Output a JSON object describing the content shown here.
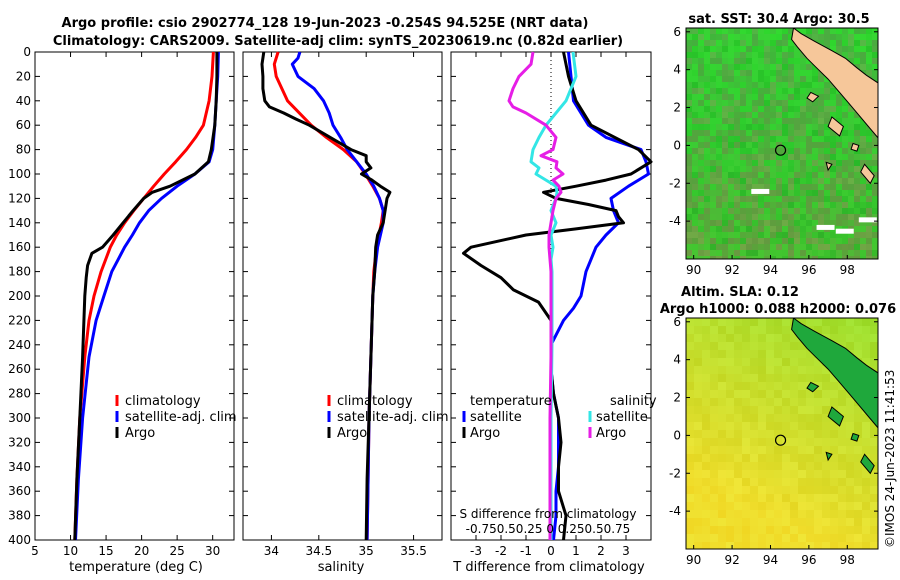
{
  "figure": {
    "title_line1": "Argo profile: csio 2902774_128 19-Jun-2023 -0.254S 94.525E (NRT data)",
    "title_line2": "Climatology: CARS2009. Satellite-adj clim: synTS_20230619.nc (0.82d earlier)",
    "sst_title": "sat. SST: 30.4 Argo: 30.5",
    "sla_title1": "Altim. SLA: 0.12",
    "sla_title2": "Argo h1000: 0.088 h2000: 0.076",
    "timestamp": "©IMOS 24-Jun-2023 11:41:53"
  },
  "colors": {
    "climatology": "#ff0000",
    "satellite": "#0000ff",
    "argo": "#000000",
    "salinity_satellite": "#33e6e6",
    "salinity_argo": "#e61ee6",
    "land": "#f6c79a"
  },
  "chart_data": [
    {
      "type": "line",
      "name": "temperature",
      "xlabel": "temperature (deg C)",
      "ylabel": "",
      "xlim": [
        5,
        33
      ],
      "ylim": [
        400,
        0
      ],
      "xticks": [
        5,
        10,
        15,
        20,
        25,
        30
      ],
      "yticks": [
        0,
        20,
        40,
        60,
        80,
        100,
        120,
        140,
        160,
        180,
        200,
        220,
        240,
        260,
        280,
        300,
        320,
        340,
        360,
        380,
        400
      ],
      "legend": [
        "climatology",
        "satellite-adj. clim",
        "Argo"
      ],
      "series": [
        {
          "name": "climatology",
          "color_key": "climatology",
          "depth": [
            0,
            20,
            40,
            60,
            70,
            80,
            90,
            100,
            110,
            120,
            130,
            140,
            150,
            160,
            180,
            200,
            220,
            250,
            300,
            350,
            400
          ],
          "values": [
            30.1,
            29.9,
            29.5,
            28.7,
            27.6,
            26.3,
            24.8,
            23.2,
            21.7,
            20.3,
            18.9,
            17.6,
            16.5,
            15.6,
            14.3,
            13.3,
            12.6,
            12.0,
            11.3,
            10.9,
            10.6
          ]
        },
        {
          "name": "satellite-adj. clim",
          "color_key": "satellite",
          "depth": [
            0,
            20,
            40,
            60,
            80,
            90,
            100,
            110,
            120,
            130,
            140,
            150,
            160,
            170,
            180,
            200,
            220,
            250,
            300,
            350,
            400
          ],
          "values": [
            30.8,
            30.7,
            30.5,
            30.3,
            30.0,
            29.5,
            27.5,
            25.0,
            22.8,
            21.0,
            19.7,
            18.7,
            17.6,
            16.7,
            15.8,
            14.7,
            13.6,
            12.6,
            11.7,
            11.1,
            10.7
          ]
        },
        {
          "name": "Argo",
          "color_key": "argo",
          "depth": [
            0,
            20,
            40,
            60,
            80,
            90,
            100,
            110,
            115,
            120,
            130,
            140,
            150,
            160,
            165,
            175,
            185,
            200,
            250,
            300,
            350,
            400
          ],
          "values": [
            30.6,
            30.6,
            30.5,
            30.3,
            29.8,
            29.4,
            27.5,
            24.0,
            21.5,
            20.3,
            18.8,
            17.4,
            16.0,
            14.5,
            13.0,
            12.4,
            12.2,
            12.0,
            11.7,
            11.3,
            10.9,
            10.6
          ]
        }
      ]
    },
    {
      "type": "line",
      "name": "salinity",
      "xlabel": "salinity",
      "ylabel": "",
      "xlim": [
        33.7,
        35.8
      ],
      "ylim": [
        400,
        0
      ],
      "xticks": [
        34,
        34.5,
        35,
        35.5
      ],
      "legend": [
        "climatology",
        "satellite-adj. clim",
        "Argo"
      ],
      "series": [
        {
          "name": "climatology",
          "color_key": "climatology",
          "depth": [
            0,
            10,
            20,
            40,
            60,
            70,
            80,
            90,
            100,
            110,
            120,
            130,
            140,
            160,
            180,
            200,
            250,
            300,
            350,
            400
          ],
          "values": [
            34.07,
            34.03,
            34.05,
            34.17,
            34.42,
            34.58,
            34.76,
            34.9,
            34.99,
            35.07,
            35.14,
            35.18,
            35.16,
            35.11,
            35.08,
            35.07,
            35.05,
            35.03,
            35.02,
            35.01
          ]
        },
        {
          "name": "satellite-adj. clim",
          "color_key": "satellite",
          "depth": [
            0,
            5,
            10,
            20,
            30,
            40,
            50,
            60,
            70,
            80,
            90,
            100,
            110,
            120,
            130,
            140,
            160,
            180,
            200,
            250,
            300,
            350,
            400
          ],
          "values": [
            34.3,
            34.28,
            34.22,
            34.28,
            34.45,
            34.55,
            34.61,
            34.65,
            34.73,
            34.8,
            34.9,
            35.0,
            35.08,
            35.14,
            35.18,
            35.18,
            35.12,
            35.09,
            35.07,
            35.05,
            35.03,
            35.02,
            35.01
          ]
        },
        {
          "name": "Argo",
          "color_key": "argo",
          "depth": [
            0,
            10,
            20,
            30,
            40,
            45,
            50,
            55,
            60,
            70,
            80,
            85,
            90,
            95,
            100,
            105,
            110,
            115,
            120,
            130,
            140,
            150,
            160,
            180,
            200,
            250,
            300,
            350,
            400
          ],
          "values": [
            33.92,
            33.9,
            33.91,
            33.91,
            33.93,
            33.98,
            34.13,
            34.26,
            34.4,
            34.62,
            34.84,
            35.0,
            35.0,
            35.05,
            34.95,
            35.06,
            35.15,
            35.25,
            35.22,
            35.2,
            35.18,
            35.12,
            35.1,
            35.09,
            35.07,
            35.05,
            35.03,
            35.01,
            35.0
          ]
        }
      ]
    },
    {
      "type": "line",
      "name": "difference",
      "xlabel": "T difference from climatology",
      "x2label": "S difference from climatology",
      "xlim": [
        -4.0,
        4.0
      ],
      "x2lim": [
        -1.0,
        1.0
      ],
      "ylim": [
        400,
        0
      ],
      "xticks": [
        -3,
        -2,
        -1,
        0,
        1,
        2,
        3
      ],
      "x2ticks": [
        -0.75,
        -0.5,
        -0.25,
        0,
        0.25,
        0.5,
        0.75
      ],
      "x2ticklabels_text": "-0.750.50.25  0  0.250.50.75",
      "legend_temperature_header": "temperature",
      "legend_salinity_header": "salinity",
      "legend_temperature": [
        "satellite",
        "Argo"
      ],
      "legend_salinity": [
        "satellite",
        "Argo"
      ],
      "series": [
        {
          "name": "temperature satellite",
          "color_key": "satellite",
          "axis": "T",
          "depth": [
            0,
            20,
            40,
            60,
            70,
            80,
            90,
            100,
            110,
            120,
            130,
            140,
            150,
            160,
            170,
            180,
            190,
            200,
            210,
            220,
            240,
            260,
            280,
            300,
            320,
            340,
            360,
            380,
            400
          ],
          "values": [
            0.7,
            0.8,
            0.9,
            1.5,
            2.2,
            3.6,
            3.8,
            3.9,
            3.1,
            2.4,
            2.5,
            2.7,
            2.2,
            1.8,
            1.6,
            1.4,
            1.3,
            1.2,
            0.9,
            0.5,
            0.0,
            0.0,
            0.1,
            0.3,
            0.3,
            0.3,
            0.2,
            0.2,
            0.1
          ]
        },
        {
          "name": "temperature Argo",
          "color_key": "argo",
          "axis": "T",
          "depth": [
            0,
            20,
            40,
            60,
            80,
            90,
            100,
            105,
            110,
            115,
            120,
            125,
            130,
            135,
            140,
            145,
            150,
            160,
            165,
            175,
            185,
            195,
            205,
            220,
            240,
            260,
            280,
            300,
            320,
            340,
            360,
            380,
            400
          ],
          "values": [
            0.5,
            0.7,
            1.0,
            1.6,
            3.5,
            4.0,
            3.2,
            2.2,
            1.0,
            -0.3,
            0.2,
            1.5,
            2.6,
            2.7,
            2.9,
            1.0,
            -1.0,
            -3.2,
            -3.5,
            -2.8,
            -2.0,
            -1.5,
            -0.5,
            0.0,
            0.0,
            0.0,
            0.1,
            0.3,
            0.4,
            0.3,
            0.3,
            0.6,
            0.5
          ]
        },
        {
          "name": "salinity satellite",
          "color_key": "salinity_satellite",
          "axis": "S",
          "depth": [
            0,
            20,
            40,
            60,
            70,
            80,
            90,
            95,
            100,
            105,
            110,
            115,
            120,
            130,
            140,
            150,
            160,
            170,
            180,
            200,
            240,
            300,
            350,
            400
          ],
          "values": [
            0.22,
            0.25,
            0.15,
            -0.05,
            -0.12,
            -0.18,
            -0.2,
            -0.12,
            -0.15,
            -0.05,
            0.05,
            0.06,
            0.05,
            0.0,
            0.05,
            0.0,
            0.02,
            0.0,
            0.01,
            0.01,
            0.01,
            0.0,
            0.0,
            0.0
          ]
        },
        {
          "name": "salinity Argo",
          "color_key": "salinity_argo",
          "axis": "S",
          "depth": [
            0,
            10,
            20,
            30,
            40,
            45,
            50,
            60,
            70,
            80,
            85,
            90,
            95,
            100,
            105,
            110,
            115,
            120,
            130,
            140,
            150,
            160,
            180,
            200,
            250,
            300,
            350,
            400
          ],
          "values": [
            -0.18,
            -0.2,
            -0.32,
            -0.38,
            -0.42,
            -0.38,
            -0.25,
            -0.05,
            0.05,
            0.02,
            -0.1,
            0.06,
            0.05,
            0.12,
            0.02,
            0.08,
            0.1,
            0.05,
            0.02,
            0.0,
            -0.02,
            -0.02,
            0.0,
            0.0,
            0.0,
            -0.01,
            -0.01,
            -0.01
          ]
        }
      ]
    },
    {
      "type": "heatmap",
      "name": "sst_map",
      "title": "sat. SST: 30.4 Argo: 30.5",
      "xlim": [
        89.6,
        99.6
      ],
      "ylim": [
        -6,
        6.2
      ],
      "xticks": [
        90,
        92,
        94,
        96,
        98
      ],
      "yticks": [
        6,
        4,
        2,
        0,
        -2,
        -4
      ],
      "argo_position": {
        "lon": 94.525,
        "lat": -0.254
      }
    },
    {
      "type": "heatmap",
      "name": "sla_map",
      "title": "Altim. SLA: 0.12",
      "xlim": [
        89.6,
        99.6
      ],
      "ylim": [
        -6,
        6.2
      ],
      "xticks": [
        90,
        92,
        94,
        96,
        98
      ],
      "yticks": [
        6,
        4,
        2,
        0,
        -2,
        -4
      ],
      "argo_position": {
        "lon": 94.525,
        "lat": -0.254
      }
    }
  ]
}
